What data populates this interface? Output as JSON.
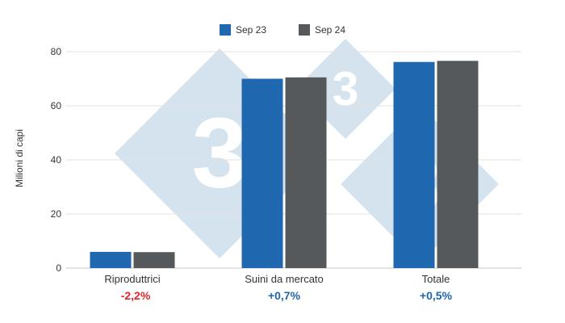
{
  "chart_data": {
    "type": "bar",
    "ylabel": "Milioni di capi",
    "ylim": [
      0,
      80
    ],
    "yticks": [
      0,
      20,
      40,
      60,
      80
    ],
    "categories": [
      "Riproduttrici",
      "Suini da mercato",
      "Totale"
    ],
    "series": [
      {
        "name": "Sep 23",
        "color": "#1f67ae",
        "values": [
          6,
          70,
          76.2
        ]
      },
      {
        "name": "Sep 24",
        "color": "#55595c",
        "values": [
          5.9,
          70.5,
          76.6
        ]
      }
    ],
    "changes": [
      {
        "text": "-2,2%",
        "color": "#e0262c"
      },
      {
        "text": "+0,7%",
        "color": "#1f67ae"
      },
      {
        "text": "+0,5%",
        "color": "#1f67ae"
      }
    ],
    "legend_position": "top-center",
    "grid": true,
    "watermark_color": "#d5e3ef"
  }
}
